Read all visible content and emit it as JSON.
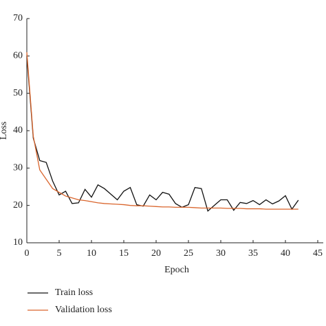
{
  "chart_data": {
    "type": "line",
    "x_label": "Epoch",
    "y_label": "Loss",
    "x": [
      0,
      1,
      2,
      3,
      4,
      5,
      6,
      7,
      8,
      9,
      10,
      11,
      12,
      13,
      14,
      15,
      16,
      17,
      18,
      19,
      20,
      21,
      22,
      23,
      24,
      25,
      26,
      27,
      28,
      29,
      30,
      31,
      32,
      33,
      34,
      35,
      36,
      37,
      38,
      39,
      40,
      41,
      42
    ],
    "series": [
      {
        "name": "Train loss",
        "color": "#111111",
        "values": [
          60,
          38,
          32,
          31.5,
          26.5,
          22.8,
          23.8,
          20.5,
          20.7,
          24.3,
          22.2,
          25.5,
          24.5,
          23,
          21.5,
          23.8,
          24.8,
          20.2,
          19.8,
          22.8,
          21.5,
          23.5,
          23,
          20.5,
          19.5,
          20.2,
          24.8,
          24.5,
          18.5,
          20,
          21.5,
          21.5,
          18.7,
          20.8,
          20.5,
          21.3,
          20.2,
          21.5,
          20.4,
          21.2,
          22.6,
          19,
          21.4
        ]
      },
      {
        "name": "Validation loss",
        "color": "#d9642b",
        "values": [
          61,
          38.5,
          29.5,
          27,
          24.5,
          23.5,
          22.5,
          22,
          21.5,
          21.3,
          21,
          20.7,
          20.5,
          20.4,
          20.3,
          20.2,
          20,
          19.9,
          19.9,
          19.8,
          19.7,
          19.6,
          19.6,
          19.5,
          19.5,
          19.5,
          19.4,
          19.3,
          19.3,
          19.3,
          19.3,
          19.2,
          19.2,
          19.2,
          19.1,
          19.1,
          19.1,
          19,
          19,
          19,
          19,
          19,
          19
        ]
      }
    ],
    "xlim": [
      0,
      45
    ],
    "xticks": [
      0,
      5,
      10,
      15,
      20,
      25,
      30,
      35,
      40,
      45
    ],
    "ylim": [
      10,
      70
    ],
    "yticks": [
      10,
      20,
      30,
      40,
      50,
      60,
      70
    ],
    "grid": false,
    "legend": "bottom"
  }
}
